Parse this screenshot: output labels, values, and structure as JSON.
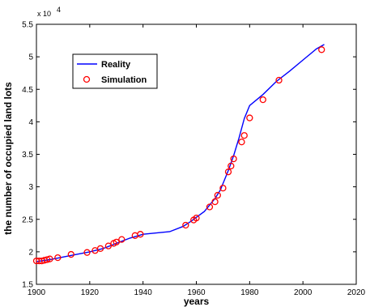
{
  "chart_data": {
    "type": "line",
    "xlabel": "years",
    "ylabel": "the number of occupied land lots",
    "y_multiplier": "x 10",
    "y_multiplier_exp": "4",
    "xlim": [
      1900,
      2020
    ],
    "ylim": [
      1.5,
      5.5
    ],
    "x_ticks": [
      "1900",
      "1920",
      "1940",
      "1960",
      "1980",
      "2000",
      "2020"
    ],
    "y_ticks": [
      "1.5",
      "2",
      "2.5",
      "3",
      "3.5",
      "4",
      "4.5",
      "5",
      "5.5"
    ],
    "legend_position": "top-left",
    "grid": false,
    "colors": {
      "reality": "#0000ff",
      "simulation": "#ff0000"
    },
    "series": [
      {
        "name": "Reality",
        "style": "line",
        "x": [
          1900,
          1905,
          1910,
          1915,
          1920,
          1925,
          1930,
          1935,
          1940,
          1945,
          1950,
          1955,
          1958,
          1960,
          1963,
          1965,
          1967,
          1969,
          1970,
          1972,
          1974,
          1976,
          1978,
          1980,
          1985,
          1990,
          1995,
          2000,
          2005,
          2008
        ],
        "y": [
          1.85,
          1.88,
          1.92,
          1.96,
          2.0,
          2.05,
          2.13,
          2.21,
          2.27,
          2.29,
          2.31,
          2.39,
          2.47,
          2.53,
          2.62,
          2.72,
          2.82,
          2.95,
          3.05,
          3.25,
          3.48,
          3.75,
          4.05,
          4.25,
          4.42,
          4.62,
          4.78,
          4.95,
          5.12,
          5.19
        ]
      },
      {
        "name": "Simulation",
        "style": "markers",
        "x": [
          1900,
          1901,
          1902,
          1903,
          1904,
          1905,
          1908,
          1913,
          1919,
          1922,
          1924,
          1927,
          1929,
          1930,
          1932,
          1937,
          1939,
          1956,
          1959,
          1960,
          1965,
          1967,
          1968,
          1970,
          1972,
          1973,
          1974,
          1977,
          1978,
          1980,
          1985,
          1991,
          2007
        ],
        "y": [
          1.86,
          1.86,
          1.86,
          1.87,
          1.88,
          1.89,
          1.91,
          1.96,
          1.99,
          2.02,
          2.05,
          2.09,
          2.13,
          2.15,
          2.19,
          2.25,
          2.27,
          2.41,
          2.49,
          2.52,
          2.69,
          2.77,
          2.87,
          2.98,
          3.23,
          3.32,
          3.43,
          3.69,
          3.79,
          4.06,
          4.34,
          4.64,
          5.11
        ]
      }
    ]
  }
}
